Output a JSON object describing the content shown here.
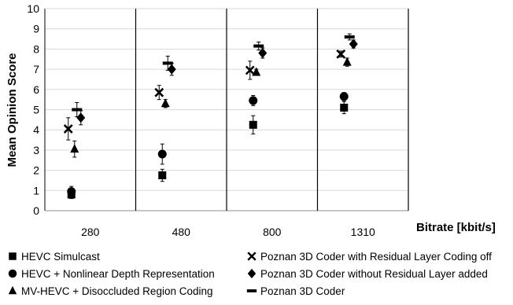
{
  "chart_data": {
    "type": "scatter",
    "title": "",
    "xlabel": "Bitrate  [kbit/s]",
    "ylabel": "Mean Opinion Score",
    "ylim": [
      0,
      10
    ],
    "yticks": [
      0,
      1,
      2,
      3,
      4,
      5,
      6,
      7,
      8,
      9,
      10
    ],
    "categories": [
      "280",
      "480",
      "800",
      "1310"
    ],
    "grid": "horizontal-major",
    "legend_position": "bottom",
    "series": [
      {
        "name": "HEVC Simulcast",
        "marker": "square",
        "values": [
          0.8,
          1.75,
          4.25,
          5.1
        ],
        "err": [
          0.2,
          0.3,
          0.45,
          0.3
        ]
      },
      {
        "name": "HEVC + Nonlinear Depth Representation",
        "marker": "circle",
        "values": [
          0.95,
          2.8,
          5.45,
          5.65
        ],
        "err": [
          0.25,
          0.5,
          0.25,
          0.2
        ]
      },
      {
        "name": "MV-HEVC + Disoccluded Region Coding",
        "marker": "triangle",
        "values": [
          3.05,
          5.3,
          6.85,
          7.35
        ],
        "err": [
          0.4,
          0.2,
          0.15,
          0.2
        ]
      },
      {
        "name": "Poznan 3D Coder with Residual Layer Coding off",
        "marker": "x",
        "values": [
          4.05,
          5.85,
          6.95,
          7.75
        ],
        "err": [
          0.55,
          0.35,
          0.45,
          0.15
        ]
      },
      {
        "name": "Poznan 3D Coder without Residual Layer added",
        "marker": "diamond",
        "values": [
          4.6,
          7.0,
          7.8,
          8.25
        ],
        "err": [
          0.35,
          0.3,
          0.25,
          0.2
        ]
      },
      {
        "name": "Poznan 3D Coder",
        "marker": "dash",
        "values": [
          5.0,
          7.3,
          8.15,
          8.6
        ],
        "err": [
          0.35,
          0.35,
          0.2,
          0.15
        ]
      }
    ]
  }
}
